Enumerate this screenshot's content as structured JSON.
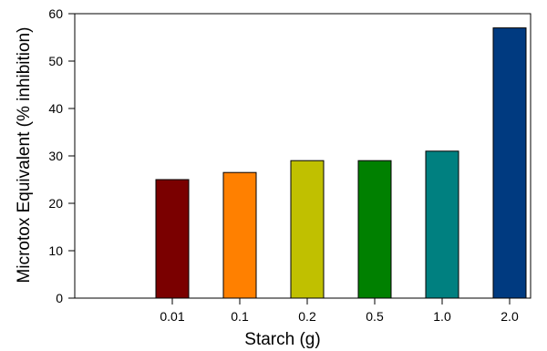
{
  "chart_data": {
    "type": "bar",
    "categories": [
      "0.01",
      "0.1",
      "0.2",
      "0.5",
      "1.0",
      "2.0"
    ],
    "values": [
      25,
      26.5,
      29,
      29,
      31,
      57
    ],
    "colors": [
      "#7a0000",
      "#ff8000",
      "#c0c000",
      "#008000",
      "#008080",
      "#003a80"
    ],
    "title": "",
    "xlabel": "Starch (g)",
    "ylabel": "Microtox Equivalent (% inhibition)",
    "ylim": [
      0,
      60
    ],
    "yticks": [
      "0",
      "10",
      "20",
      "30",
      "40",
      "50",
      "60"
    ],
    "grid": false,
    "legend": "none"
  }
}
